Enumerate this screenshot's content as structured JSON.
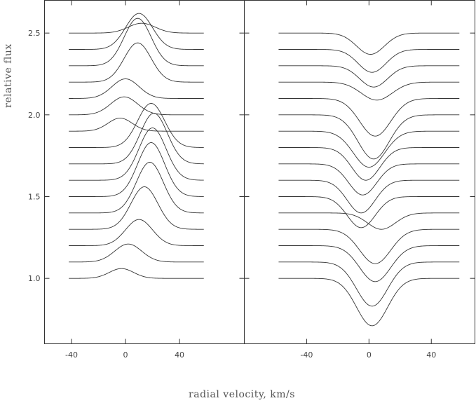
{
  "chart_data": {
    "type": "line",
    "xlabel": "radial velocity, km/s",
    "ylabel": "relative flux",
    "ylim": [
      0.6,
      2.7
    ],
    "yticks": [
      1.0,
      1.5,
      2.0,
      2.5
    ],
    "ytick_labels": [
      "1.0",
      "1.5",
      "2.0",
      "2.5"
    ],
    "grid": false,
    "panels": [
      {
        "name": "left",
        "xlim": [
          -60,
          88
        ],
        "xticks": [
          -40,
          0,
          40
        ],
        "xtick_labels": [
          "-40",
          "0",
          "40"
        ],
        "profile_xrange": [
          -42,
          58
        ],
        "profiles": [
          {
            "baseline": 1.0,
            "center": -3,
            "amplitude": 0.06,
            "width": 9
          },
          {
            "baseline": 1.1,
            "center": 2,
            "amplitude": 0.11,
            "width": 10
          },
          {
            "baseline": 1.2,
            "center": 10,
            "amplitude": 0.16,
            "width": 10
          },
          {
            "baseline": 1.3,
            "center": 14,
            "amplitude": 0.26,
            "width": 10
          },
          {
            "baseline": 1.4,
            "center": 18,
            "amplitude": 0.31,
            "width": 10
          },
          {
            "baseline": 1.5,
            "center": 19,
            "amplitude": 0.33,
            "width": 10
          },
          {
            "baseline": 1.6,
            "center": 20,
            "amplitude": 0.32,
            "width": 10
          },
          {
            "baseline": 1.7,
            "center": 21,
            "amplitude": 0.31,
            "width": 10
          },
          {
            "baseline": 1.8,
            "center": 19,
            "amplitude": 0.27,
            "width": 10
          },
          {
            "baseline": 1.9,
            "center": -4,
            "amplitude": 0.08,
            "width": 9
          },
          {
            "baseline": 2.0,
            "center": -1,
            "amplitude": 0.11,
            "width": 10
          },
          {
            "baseline": 2.1,
            "center": 0,
            "amplitude": 0.12,
            "width": 10
          },
          {
            "baseline": 2.2,
            "center": 9,
            "amplitude": 0.24,
            "width": 10
          },
          {
            "baseline": 2.3,
            "center": 9,
            "amplitude": 0.29,
            "width": 10
          },
          {
            "baseline": 2.4,
            "center": 10,
            "amplitude": 0.22,
            "width": 10
          },
          {
            "baseline": 2.5,
            "center": 12,
            "amplitude": 0.06,
            "width": 10
          }
        ]
      },
      {
        "name": "right",
        "xlim": [
          -80,
          68
        ],
        "xticks": [
          -40,
          0,
          40
        ],
        "xtick_labels": [
          "-40",
          "0",
          "40"
        ],
        "profile_xrange": [
          -58,
          58
        ],
        "profiles": [
          {
            "baseline": 1.0,
            "center": 2,
            "amplitude": -0.29,
            "width": 10
          },
          {
            "baseline": 1.1,
            "center": 2,
            "amplitude": -0.27,
            "width": 10
          },
          {
            "baseline": 1.2,
            "center": 4,
            "amplitude": -0.22,
            "width": 10
          },
          {
            "baseline": 1.3,
            "center": 4,
            "amplitude": -0.21,
            "width": 10
          },
          {
            "baseline": 1.4,
            "center": 8,
            "amplitude": -0.1,
            "width": 9
          },
          {
            "baseline": 1.5,
            "center": -5,
            "amplitude": -0.19,
            "width": 9
          },
          {
            "baseline": 1.6,
            "center": -5,
            "amplitude": -0.2,
            "width": 9
          },
          {
            "baseline": 1.7,
            "center": -4,
            "amplitude": -0.19,
            "width": 9
          },
          {
            "baseline": 1.8,
            "center": -2,
            "amplitude": -0.2,
            "width": 9
          },
          {
            "baseline": 1.9,
            "center": 0,
            "amplitude": -0.22,
            "width": 10
          },
          {
            "baseline": 2.0,
            "center": 3,
            "amplitude": -0.27,
            "width": 10
          },
          {
            "baseline": 2.1,
            "center": 4,
            "amplitude": -0.23,
            "width": 10
          },
          {
            "baseline": 2.2,
            "center": 5,
            "amplitude": -0.11,
            "width": 10
          },
          {
            "baseline": 2.3,
            "center": 3,
            "amplitude": -0.13,
            "width": 9
          },
          {
            "baseline": 2.4,
            "center": 2,
            "amplitude": -0.14,
            "width": 9
          },
          {
            "baseline": 2.5,
            "center": 1,
            "amplitude": -0.13,
            "width": 9
          }
        ]
      }
    ]
  }
}
